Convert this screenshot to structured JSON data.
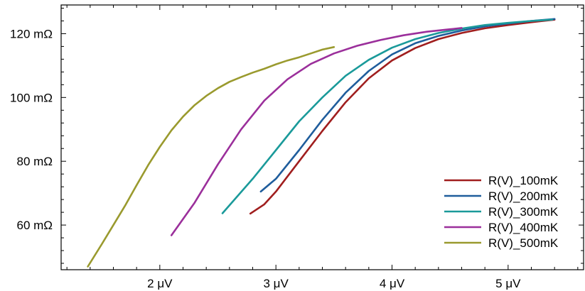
{
  "chart_data": {
    "type": "line",
    "title": "",
    "xlabel": "",
    "ylabel": "",
    "xlim": [
      1.15,
      5.65
    ],
    "ylim": [
      46,
      129
    ],
    "x_ticks": [
      {
        "value": 2,
        "label": "2 μV"
      },
      {
        "value": 3,
        "label": "3 μV"
      },
      {
        "value": 4,
        "label": "4 μV"
      },
      {
        "value": 5,
        "label": "5 μV"
      }
    ],
    "y_ticks": [
      {
        "value": 60,
        "label": "60 mΩ"
      },
      {
        "value": 80,
        "label": "80 mΩ"
      },
      {
        "value": 100,
        "label": "100 mΩ"
      },
      {
        "value": 120,
        "label": "120 mΩ"
      }
    ],
    "grid": false,
    "legend_position": "bottom-right",
    "series": [
      {
        "name": "R(V)_100mK",
        "color": "#a01e1e",
        "points": [
          [
            2.78,
            63.6
          ],
          [
            2.9,
            66.5
          ],
          [
            3.0,
            70.5
          ],
          [
            3.2,
            80.0
          ],
          [
            3.4,
            89.5
          ],
          [
            3.6,
            98.5
          ],
          [
            3.8,
            106.0
          ],
          [
            4.0,
            111.6
          ],
          [
            4.2,
            115.5
          ],
          [
            4.4,
            118.3
          ],
          [
            4.6,
            120.2
          ],
          [
            4.8,
            121.7
          ],
          [
            5.0,
            122.7
          ],
          [
            5.2,
            123.6
          ],
          [
            5.4,
            124.4
          ]
        ]
      },
      {
        "name": "R(V)_200mK",
        "color": "#1f5d9c",
        "points": [
          [
            2.87,
            70.5
          ],
          [
            3.0,
            74.5
          ],
          [
            3.2,
            83.5
          ],
          [
            3.4,
            93.0
          ],
          [
            3.6,
            101.5
          ],
          [
            3.8,
            108.3
          ],
          [
            4.0,
            113.5
          ],
          [
            4.2,
            117.0
          ],
          [
            4.4,
            119.3
          ],
          [
            4.6,
            121.0
          ],
          [
            4.8,
            122.3
          ],
          [
            5.0,
            123.2
          ],
          [
            5.2,
            124.0
          ],
          [
            5.4,
            124.6
          ]
        ]
      },
      {
        "name": "R(V)_300mK",
        "color": "#1a9a9a",
        "points": [
          [
            2.54,
            63.7
          ],
          [
            2.8,
            74.5
          ],
          [
            3.0,
            83.5
          ],
          [
            3.2,
            92.5
          ],
          [
            3.4,
            100.0
          ],
          [
            3.6,
            106.8
          ],
          [
            3.8,
            111.8
          ],
          [
            4.0,
            115.6
          ],
          [
            4.2,
            118.3
          ],
          [
            4.4,
            120.2
          ],
          [
            4.6,
            121.6
          ],
          [
            4.8,
            122.7
          ],
          [
            5.0,
            123.4
          ],
          [
            5.2,
            124.0
          ],
          [
            5.38,
            124.4
          ]
        ]
      },
      {
        "name": "R(V)_400mK",
        "color": "#9b2f9b",
        "points": [
          [
            2.1,
            56.8
          ],
          [
            2.3,
            67.0
          ],
          [
            2.5,
            79.0
          ],
          [
            2.7,
            90.0
          ],
          [
            2.9,
            99.0
          ],
          [
            3.1,
            105.7
          ],
          [
            3.3,
            110.5
          ],
          [
            3.5,
            113.8
          ],
          [
            3.7,
            116.2
          ],
          [
            3.9,
            118.0
          ],
          [
            4.1,
            119.5
          ],
          [
            4.3,
            120.6
          ],
          [
            4.5,
            121.4
          ],
          [
            4.6,
            121.8
          ]
        ]
      },
      {
        "name": "R(V)_500mK",
        "color": "#9a9a2e",
        "points": [
          [
            1.38,
            47.0
          ],
          [
            1.5,
            54.0
          ],
          [
            1.6,
            60.0
          ],
          [
            1.7,
            66.0
          ],
          [
            1.8,
            72.5
          ],
          [
            1.9,
            78.8
          ],
          [
            2.0,
            84.5
          ],
          [
            2.1,
            89.7
          ],
          [
            2.2,
            94.0
          ],
          [
            2.3,
            97.6
          ],
          [
            2.4,
            100.5
          ],
          [
            2.5,
            102.9
          ],
          [
            2.6,
            104.9
          ],
          [
            2.7,
            106.4
          ],
          [
            2.8,
            107.8
          ],
          [
            2.9,
            109.0
          ],
          [
            3.0,
            110.4
          ],
          [
            3.1,
            111.6
          ],
          [
            3.2,
            112.6
          ],
          [
            3.3,
            113.8
          ],
          [
            3.4,
            115.0
          ],
          [
            3.5,
            115.8
          ]
        ]
      }
    ]
  }
}
